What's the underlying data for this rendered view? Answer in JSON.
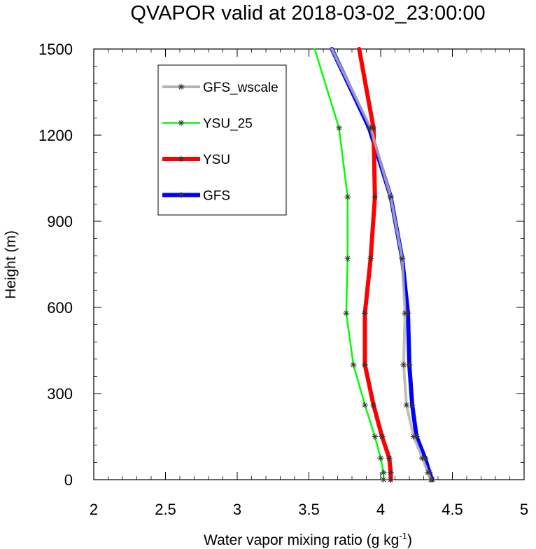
{
  "chart_data": {
    "type": "line",
    "title": "QVAPOR valid at 2018-03-02_23:00:00",
    "xlabel": "Water vapor mixing ratio (g kg",
    "xlabel_sup": "-1",
    "xlabel_close": ")",
    "ylabel": "Height (m)",
    "xlim": [
      2,
      5
    ],
    "ylim": [
      0,
      1500
    ],
    "x_ticks": [
      "2",
      "2.5",
      "3",
      "3.5",
      "4",
      "4.5",
      "5"
    ],
    "y_ticks": [
      "0",
      "300",
      "600",
      "900",
      "1200",
      "1500"
    ],
    "grid": false,
    "legend_position": "top-left",
    "series": [
      {
        "name": "GFS",
        "color": "#0000ff",
        "points": [
          [
            4.36,
            0
          ],
          [
            4.34,
            25
          ],
          [
            4.31,
            75
          ],
          [
            4.25,
            150
          ],
          [
            4.22,
            260
          ],
          [
            4.2,
            400
          ],
          [
            4.19,
            580
          ],
          [
            4.15,
            770
          ],
          [
            4.07,
            985
          ],
          [
            3.92,
            1225
          ],
          [
            3.66,
            1500
          ]
        ]
      },
      {
        "name": "YSU",
        "color": "#ff0000",
        "points": [
          [
            4.07,
            0
          ],
          [
            4.07,
            25
          ],
          [
            4.06,
            75
          ],
          [
            4.01,
            150
          ],
          [
            3.95,
            260
          ],
          [
            3.89,
            400
          ],
          [
            3.89,
            580
          ],
          [
            3.93,
            770
          ],
          [
            3.96,
            985
          ],
          [
            3.95,
            1225
          ],
          [
            3.85,
            1500
          ]
        ]
      },
      {
        "name": "YSU_25",
        "color": "#00ff00",
        "points": [
          [
            4.02,
            0
          ],
          [
            4.02,
            25
          ],
          [
            4.0,
            75
          ],
          [
            3.96,
            150
          ],
          [
            3.89,
            260
          ],
          [
            3.81,
            400
          ],
          [
            3.76,
            580
          ],
          [
            3.77,
            770
          ],
          [
            3.77,
            985
          ],
          [
            3.71,
            1225
          ],
          [
            3.54,
            1500
          ]
        ]
      },
      {
        "name": "GFS_wscale",
        "color": "#b3b3b3",
        "points": [
          [
            4.35,
            0
          ],
          [
            4.33,
            25
          ],
          [
            4.29,
            75
          ],
          [
            4.23,
            150
          ],
          [
            4.18,
            260
          ],
          [
            4.16,
            400
          ],
          [
            4.17,
            580
          ],
          [
            4.15,
            770
          ],
          [
            4.07,
            985
          ],
          [
            3.93,
            1225
          ],
          [
            3.66,
            1500
          ]
        ]
      }
    ],
    "legend_order": [
      "GFS_wscale",
      "YSU_25",
      "YSU",
      "GFS"
    ]
  }
}
